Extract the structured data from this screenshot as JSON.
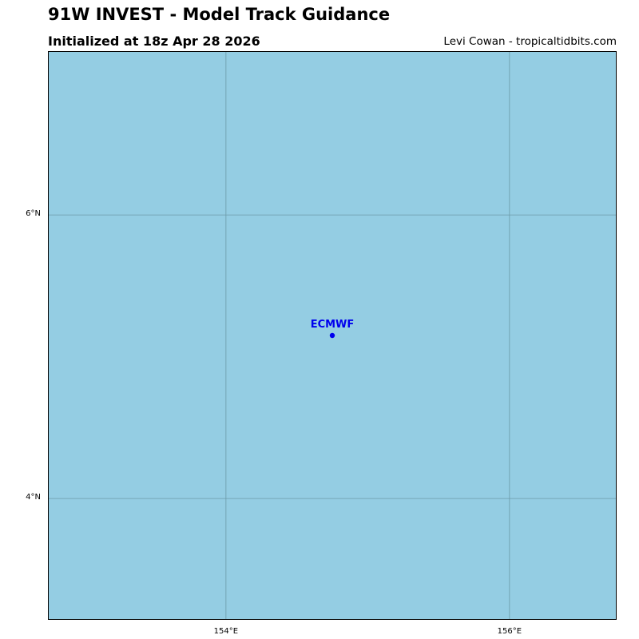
{
  "header": {
    "title": "91W INVEST - Model Track Guidance",
    "subtitle": "Initialized at 18z Apr 28 2026",
    "credit": "Levi Cowan - tropicaltidbits.com"
  },
  "map": {
    "extent": {
      "lon_min": 152.75,
      "lon_max": 156.75,
      "lat_min": 3.15,
      "lat_max": 7.15
    },
    "ocean_color": "#94cde3",
    "gridline_color": "#6c9aa8",
    "gridlines": {
      "longitudes": [
        {
          "value": 154,
          "label": "154°E"
        },
        {
          "value": 156,
          "label": "156°E"
        }
      ],
      "latitudes": [
        {
          "value": 6,
          "label": "6°N"
        },
        {
          "value": 4,
          "label": "4°N"
        }
      ]
    },
    "models": [
      {
        "name": "ECMWF",
        "lon": 154.75,
        "lat": 5.15,
        "color": "#0000ee"
      }
    ]
  }
}
